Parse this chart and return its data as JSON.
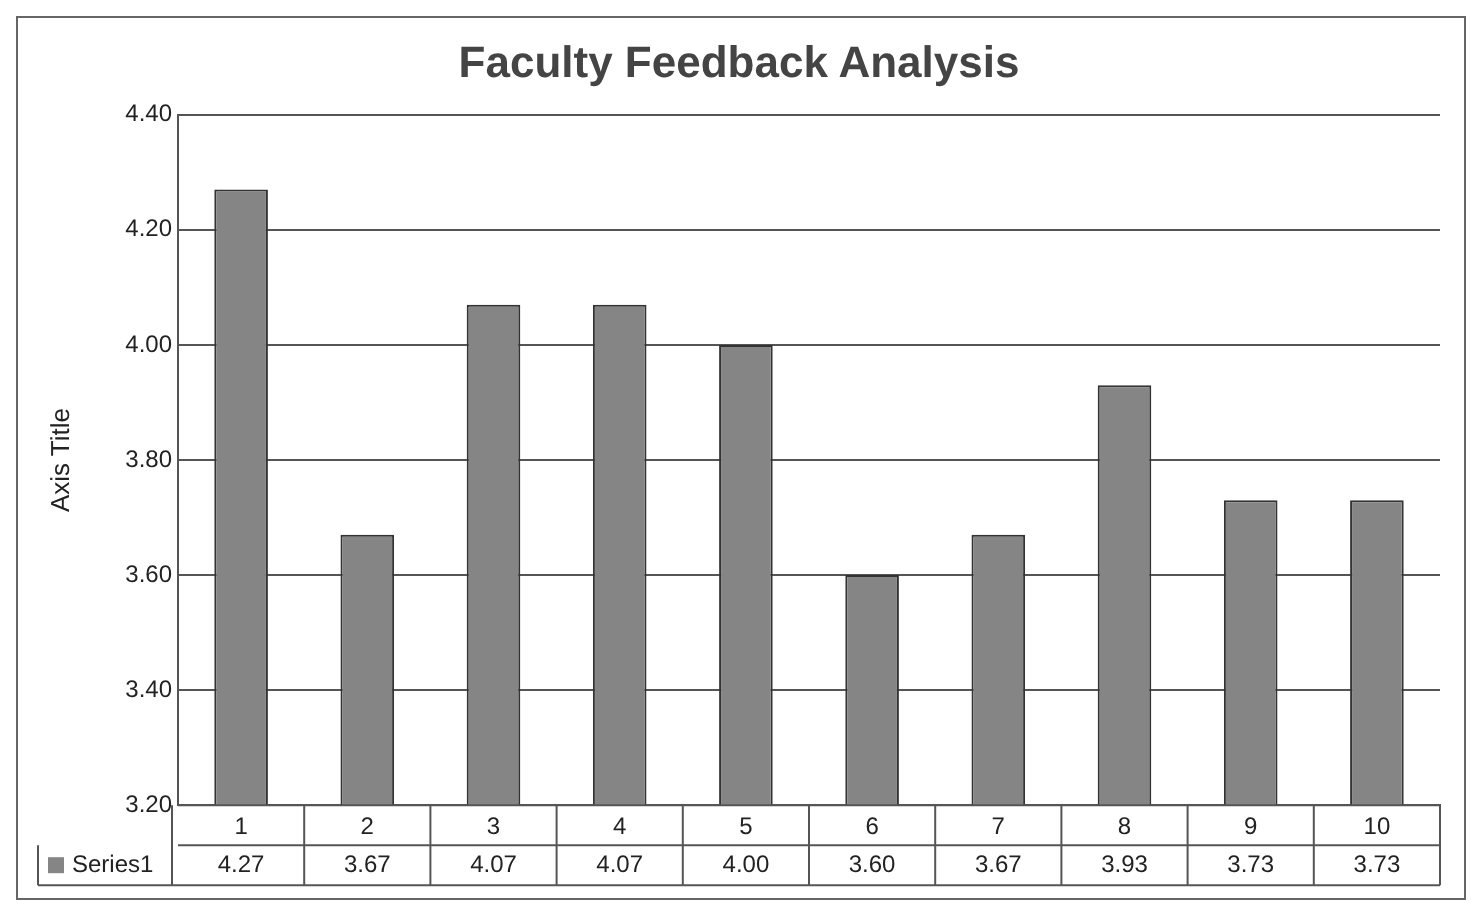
{
  "chart_data": {
    "type": "bar",
    "title": "Faculty Feedback Analysis",
    "ylabel": "Axis Title",
    "categories": [
      "1",
      "2",
      "3",
      "4",
      "5",
      "6",
      "7",
      "8",
      "9",
      "10"
    ],
    "series": [
      {
        "name": "Series1",
        "color": "#858585",
        "values": [
          4.27,
          3.67,
          4.07,
          4.07,
          4.0,
          3.6,
          3.67,
          3.93,
          3.73,
          3.73
        ],
        "value_labels": [
          "4.27",
          "3.67",
          "4.07",
          "4.07",
          "4.00",
          "3.60",
          "3.67",
          "3.93",
          "3.73",
          "3.73"
        ]
      }
    ],
    "ylim": [
      3.2,
      4.4
    ],
    "yticks": [
      {
        "value": 3.2,
        "label": "3.20"
      },
      {
        "value": 3.4,
        "label": "3.40"
      },
      {
        "value": 3.6,
        "label": "3.60"
      },
      {
        "value": 3.8,
        "label": "3.80"
      },
      {
        "value": 4.0,
        "label": "4.00"
      },
      {
        "value": 4.2,
        "label": "4.20"
      },
      {
        "value": 4.4,
        "label": "4.40"
      }
    ],
    "grid": "y",
    "legend": "bottom left"
  }
}
